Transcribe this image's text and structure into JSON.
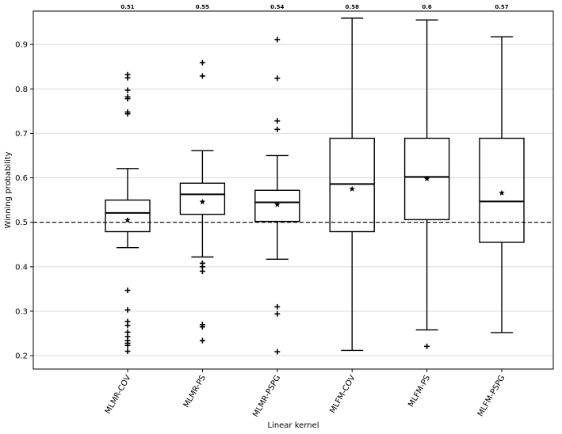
{
  "chart_data": {
    "type": "box",
    "xlabel": "Linear kernel",
    "ylabel": "Winning probability",
    "ylim": [
      0.17,
      0.975
    ],
    "yticks": [
      0.2,
      0.3,
      0.4,
      0.5,
      0.6,
      0.7,
      0.8,
      0.9
    ],
    "ytick_labels": [
      "0.2",
      "0.3",
      "0.4",
      "0.5",
      "0.6",
      "0.7",
      "0.8",
      "0.9"
    ],
    "grid": true,
    "reference_line": 0.5,
    "categories": [
      "MLMR-COV",
      "MLMR-PS",
      "MLMR-PSPG",
      "MLFM-COV",
      "MLFM-PS",
      "MLFM-PSPG"
    ],
    "boxes": [
      {
        "name": "MLMR-COV",
        "whisker_low": 0.443,
        "q1": 0.479,
        "median": 0.521,
        "q3": 0.55,
        "whisker_high": 0.621,
        "mean": 0.505,
        "mean_label": "0.51",
        "outliers": [
          0.832,
          0.825,
          0.797,
          0.782,
          0.778,
          0.748,
          0.744,
          0.347,
          0.303,
          0.277,
          0.268,
          0.253,
          0.243,
          0.234,
          0.228,
          0.223,
          0.21
        ]
      },
      {
        "name": "MLMR-PS",
        "whisker_low": 0.422,
        "q1": 0.518,
        "median": 0.563,
        "q3": 0.588,
        "whisker_high": 0.661,
        "mean": 0.546,
        "mean_label": "0.55",
        "outliers": [
          0.859,
          0.829,
          0.408,
          0.4,
          0.39,
          0.27,
          0.265,
          0.234
        ]
      },
      {
        "name": "MLMR-PSPG",
        "whisker_low": 0.417,
        "q1": 0.502,
        "median": 0.545,
        "q3": 0.572,
        "whisker_high": 0.65,
        "mean": 0.54,
        "mean_label": "0.54",
        "outliers": [
          0.911,
          0.824,
          0.728,
          0.709,
          0.31,
          0.294,
          0.209
        ]
      },
      {
        "name": "MLFM-COV",
        "whisker_low": 0.212,
        "q1": 0.479,
        "median": 0.586,
        "q3": 0.689,
        "whisker_high": 0.959,
        "mean": 0.575,
        "mean_label": "0.58",
        "outliers": []
      },
      {
        "name": "MLFM-PS",
        "whisker_low": 0.258,
        "q1": 0.506,
        "median": 0.602,
        "q3": 0.689,
        "whisker_high": 0.955,
        "mean": 0.598,
        "mean_label": "0.6",
        "outliers": [
          0.221
        ]
      },
      {
        "name": "MLFM-PSPG",
        "whisker_low": 0.252,
        "q1": 0.455,
        "median": 0.547,
        "q3": 0.689,
        "whisker_high": 0.917,
        "mean": 0.566,
        "mean_label": "0.57",
        "outliers": []
      }
    ]
  }
}
